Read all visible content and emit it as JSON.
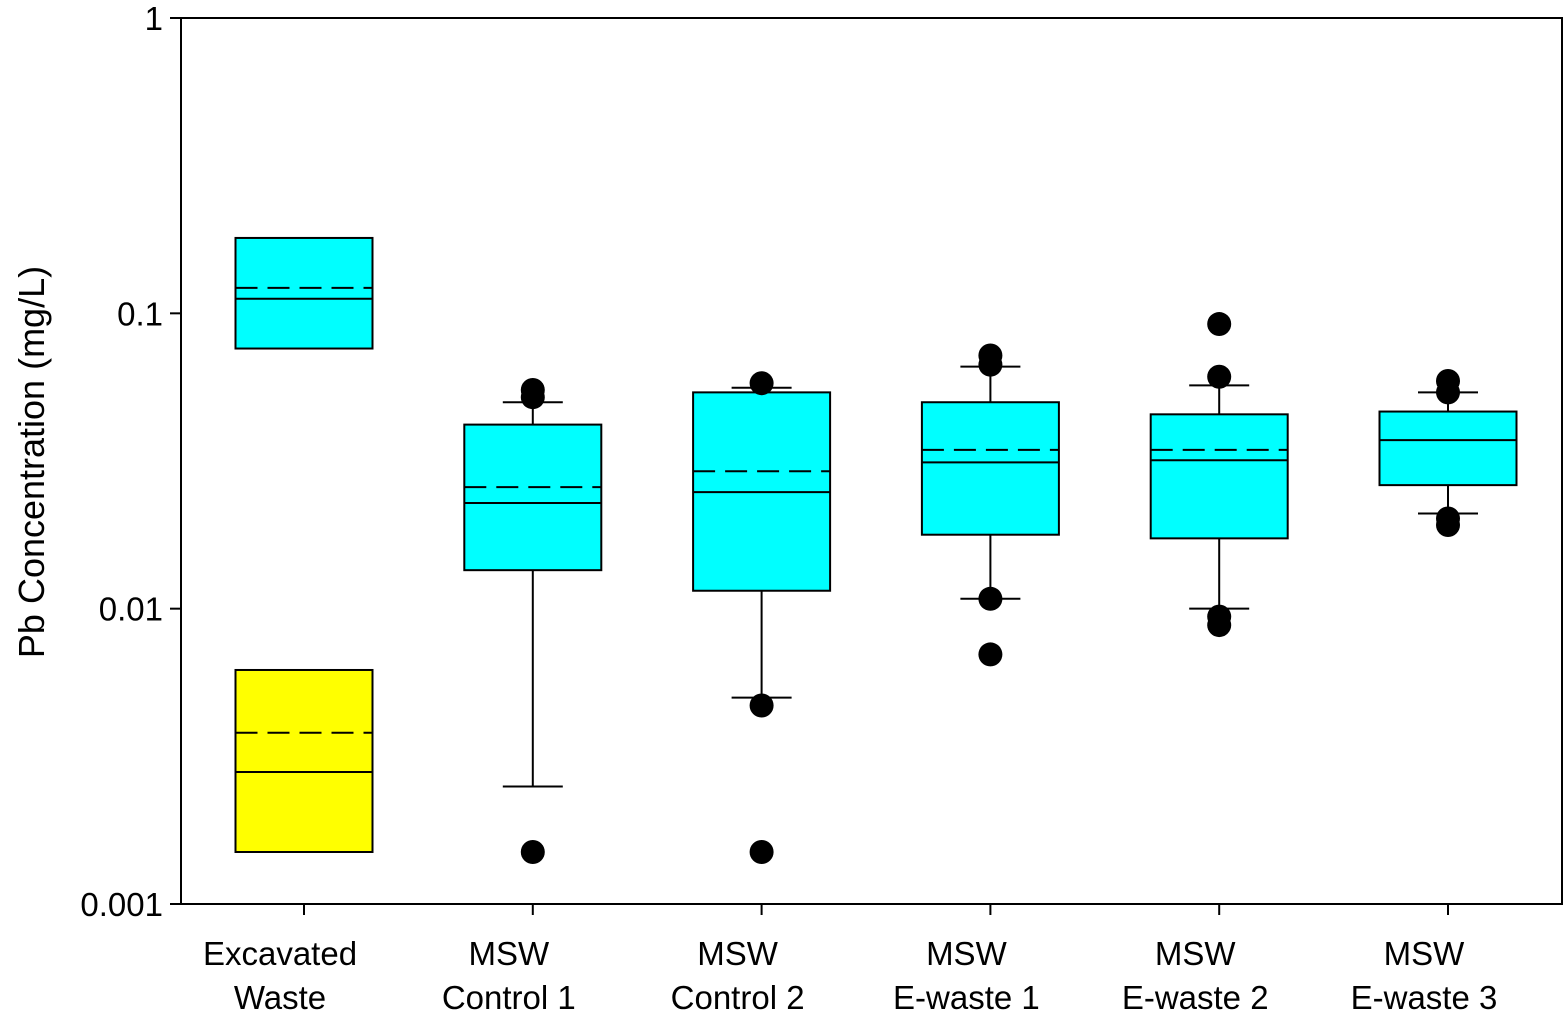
{
  "chart_data": {
    "type": "box",
    "title": "",
    "xlabel": "",
    "ylabel": "Pb Concentration (mg/L)",
    "yscale": "log",
    "ylim": [
      0.001,
      1
    ],
    "yticks": [
      {
        "value": 1,
        "label": "1"
      },
      {
        "value": 0.1,
        "label": "0.1"
      },
      {
        "value": 0.01,
        "label": "0.01"
      },
      {
        "value": 0.001,
        "label": "0.001"
      }
    ],
    "categories": [
      {
        "label_lines": [
          "Excavated",
          "Waste"
        ]
      },
      {
        "label_lines": [
          "MSW",
          "Control 1"
        ]
      },
      {
        "label_lines": [
          "MSW",
          "Control 2"
        ]
      },
      {
        "label_lines": [
          "MSW",
          "E-waste 1"
        ]
      },
      {
        "label_lines": [
          "MSW",
          "E-waste 2"
        ]
      },
      {
        "label_lines": [
          "MSW",
          "E-waste 3"
        ]
      }
    ],
    "boxes": [
      {
        "category": 0,
        "color": "#00ffff",
        "q1": 0.076,
        "median": 0.112,
        "mean": 0.122,
        "q3": 0.18,
        "whisker_low": null,
        "whisker_high": null,
        "outliers": []
      },
      {
        "category": 0,
        "color": "#ffff00",
        "q1": 0.0015,
        "median": 0.0028,
        "mean": 0.0038,
        "q3": 0.0062,
        "whisker_low": null,
        "whisker_high": null,
        "outliers": []
      },
      {
        "category": 1,
        "color": "#00ffff",
        "q1": 0.0135,
        "median": 0.0228,
        "mean": 0.0258,
        "q3": 0.042,
        "whisker_low": 0.0025,
        "whisker_high": 0.05,
        "outliers": [
          0.0015,
          0.052,
          0.055
        ]
      },
      {
        "category": 2,
        "color": "#00ffff",
        "q1": 0.0115,
        "median": 0.0248,
        "mean": 0.0292,
        "q3": 0.054,
        "whisker_low": 0.005,
        "whisker_high": 0.056,
        "outliers": [
          0.0015,
          0.0047,
          0.058
        ]
      },
      {
        "category": 3,
        "color": "#00ffff",
        "q1": 0.0178,
        "median": 0.0313,
        "mean": 0.0345,
        "q3": 0.05,
        "whisker_low": 0.0108,
        "whisker_high": 0.066,
        "outliers": [
          0.007,
          0.0108,
          0.067,
          0.072
        ]
      },
      {
        "category": 4,
        "color": "#00ffff",
        "q1": 0.0173,
        "median": 0.0318,
        "mean": 0.0345,
        "q3": 0.0455,
        "whisker_low": 0.01,
        "whisker_high": 0.057,
        "outliers": [
          0.0088,
          0.0094,
          0.061,
          0.092
        ]
      },
      {
        "category": 5,
        "color": "#00ffff",
        "q1": 0.0262,
        "median": 0.0372,
        "mean": 0.0372,
        "q3": 0.0465,
        "whisker_low": 0.021,
        "whisker_high": 0.054,
        "outliers": [
          0.0192,
          0.0202,
          0.054,
          0.059
        ]
      }
    ]
  }
}
